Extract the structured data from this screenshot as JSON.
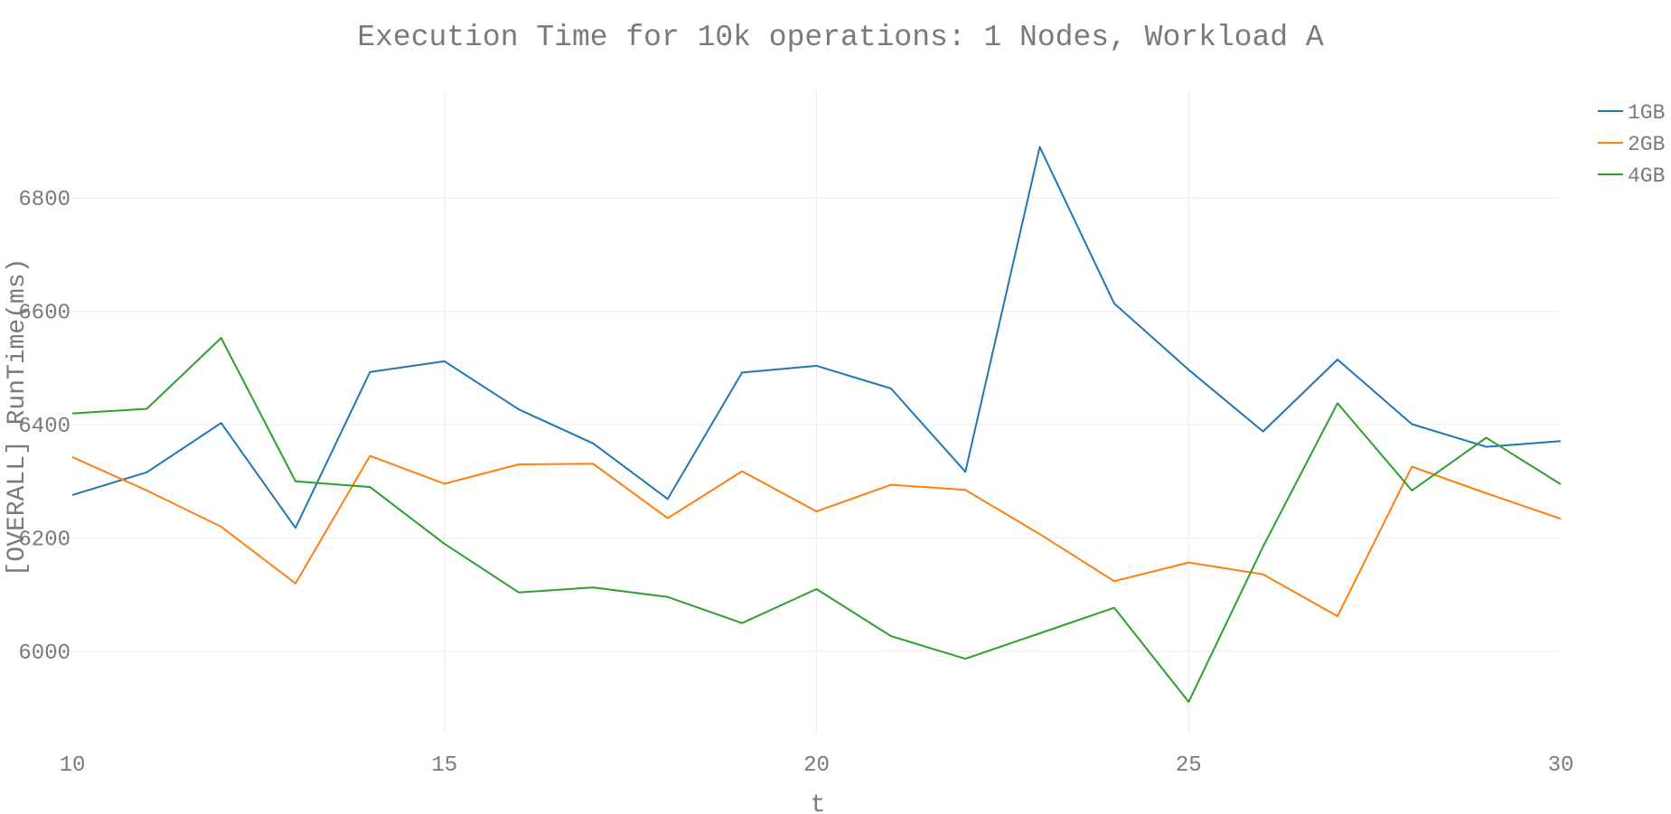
{
  "chart_data": {
    "type": "line",
    "title": "Execution Time for 10k operations: 1 Nodes, Workload A",
    "xlabel": "t",
    "ylabel": "[OVERALL] RunTime(ms)",
    "x": [
      10,
      11,
      12,
      13,
      14,
      15,
      16,
      17,
      18,
      19,
      20,
      21,
      22,
      23,
      24,
      25,
      26,
      27,
      28,
      29,
      30
    ],
    "xlim": [
      10,
      30
    ],
    "ylim": [
      5855,
      6990
    ],
    "xticks": [
      10,
      15,
      20,
      25,
      30
    ],
    "yticks": [
      6000,
      6200,
      6400,
      6600,
      6800
    ],
    "grid": true,
    "legend_position": "top-right",
    "series": [
      {
        "name": "1GB",
        "color": "#1f77b4",
        "values": [
          6276,
          6316,
          6403,
          6218,
          6493,
          6512,
          6427,
          6367,
          6269,
          6492,
          6504,
          6464,
          6317,
          6890,
          6614,
          6497,
          6388,
          6515,
          6401,
          6361,
          6371
        ]
      },
      {
        "name": "2GB",
        "color": "#ff7f0e",
        "values": [
          6343,
          6284,
          6220,
          6120,
          6345,
          6296,
          6330,
          6331,
          6235,
          6318,
          6247,
          6294,
          6285,
          6207,
          6124,
          6157,
          6136,
          6062,
          6326,
          6279,
          6234
        ]
      },
      {
        "name": "4GB",
        "color": "#2ca02c",
        "values": [
          6420,
          6428,
          6553,
          6300,
          6290,
          6190,
          6104,
          6113,
          6096,
          6050,
          6110,
          6027,
          5987,
          6032,
          6077,
          5911,
          6185,
          6438,
          6284,
          6377,
          6295
        ]
      }
    ]
  }
}
